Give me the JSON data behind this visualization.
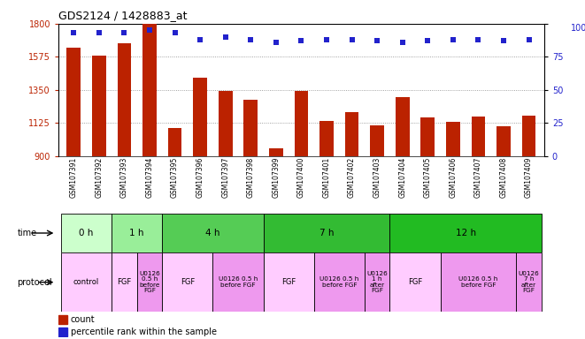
{
  "title": "GDS2124 / 1428883_at",
  "samples": [
    "GSM107391",
    "GSM107392",
    "GSM107393",
    "GSM107394",
    "GSM107395",
    "GSM107396",
    "GSM107397",
    "GSM107398",
    "GSM107399",
    "GSM107400",
    "GSM107401",
    "GSM107402",
    "GSM107403",
    "GSM107404",
    "GSM107405",
    "GSM107406",
    "GSM107407",
    "GSM107408",
    "GSM107409"
  ],
  "bar_values": [
    1640,
    1580,
    1670,
    1800,
    1090,
    1430,
    1340,
    1280,
    950,
    1340,
    1140,
    1200,
    1110,
    1300,
    1160,
    1130,
    1170,
    1100,
    1175
  ],
  "dot_values": [
    93,
    93,
    93,
    95,
    93,
    88,
    90,
    88,
    86,
    87,
    88,
    88,
    87,
    86,
    87,
    88,
    88,
    87,
    88
  ],
  "ylim_left": [
    900,
    1800
  ],
  "ylim_right": [
    0,
    100
  ],
  "yticks_left": [
    900,
    1125,
    1350,
    1575,
    1800
  ],
  "yticks_right": [
    0,
    25,
    50,
    75,
    100
  ],
  "bar_color": "#bb2200",
  "dot_color": "#2222cc",
  "time_groups": [
    {
      "label": "0 h",
      "start": 0,
      "end": 2,
      "color": "#ccffcc"
    },
    {
      "label": "1 h",
      "start": 2,
      "end": 4,
      "color": "#99ee99"
    },
    {
      "label": "4 h",
      "start": 4,
      "end": 8,
      "color": "#55cc55"
    },
    {
      "label": "7 h",
      "start": 8,
      "end": 13,
      "color": "#33bb33"
    },
    {
      "label": "12 h",
      "start": 13,
      "end": 19,
      "color": "#22bb22"
    }
  ],
  "protocol_groups": [
    {
      "label": "control",
      "start": 0,
      "end": 2,
      "color": "#ffccff"
    },
    {
      "label": "FGF",
      "start": 2,
      "end": 3,
      "color": "#ffccff"
    },
    {
      "label": "U0126\n0.5 h\nbefore\nFGF",
      "start": 3,
      "end": 4,
      "color": "#ee99ee"
    },
    {
      "label": "FGF",
      "start": 4,
      "end": 6,
      "color": "#ffccff"
    },
    {
      "label": "U0126 0.5 h\nbefore FGF",
      "start": 6,
      "end": 8,
      "color": "#ee99ee"
    },
    {
      "label": "FGF",
      "start": 8,
      "end": 10,
      "color": "#ffccff"
    },
    {
      "label": "U0126 0.5 h\nbefore FGF",
      "start": 10,
      "end": 12,
      "color": "#ee99ee"
    },
    {
      "label": "U0126\n1 h\nafter\nFGF",
      "start": 12,
      "end": 13,
      "color": "#ee99ee"
    },
    {
      "label": "FGF",
      "start": 13,
      "end": 15,
      "color": "#ffccff"
    },
    {
      "label": "U0126 0.5 h\nbefore FGF",
      "start": 15,
      "end": 18,
      "color": "#ee99ee"
    },
    {
      "label": "U0126\n7 h\nafter\nFGF",
      "start": 18,
      "end": 19,
      "color": "#ee99ee"
    }
  ],
  "bg_color": "#ffffff",
  "grid_color": "#888888"
}
